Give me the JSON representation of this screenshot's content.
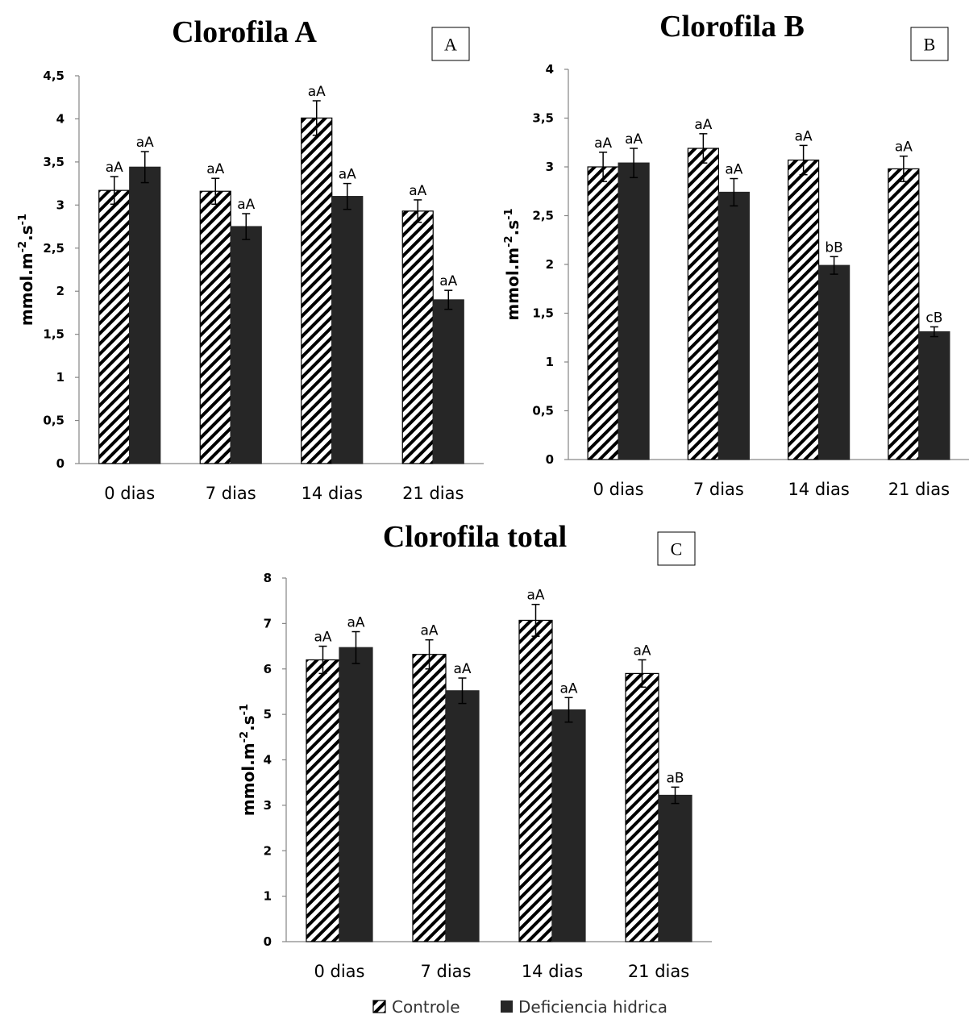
{
  "legend": {
    "controle": "Controle",
    "deficiencia": "Deficiencia hidrica"
  },
  "colors": {
    "controle_fill": "#ffffff",
    "controle_hatch": "#000000",
    "deficiencia_fill": "#262626",
    "axis": "#868686"
  },
  "chart_data": [
    {
      "type": "bar",
      "title": "Clorofila A",
      "panel_label": "A",
      "ylabel": "mmol.m-2.s-1",
      "ylabel_parts": [
        "mmol.m",
        "-2",
        ".s",
        "-1"
      ],
      "ylim": [
        0,
        4.5
      ],
      "yticks": [
        "0",
        "0,5",
        "1",
        "1,5",
        "2",
        "2,5",
        "3",
        "3,5",
        "4",
        "4,5"
      ],
      "categories": [
        "0 dias",
        "7 dias",
        "14 dias",
        "21 dias"
      ],
      "series": [
        {
          "name": "Controle",
          "values": [
            3.17,
            3.16,
            4.01,
            2.93
          ],
          "errors": [
            0.16,
            0.15,
            0.2,
            0.13
          ],
          "labels": [
            "aA",
            "aA",
            "aA",
            "aA"
          ]
        },
        {
          "name": "Deficiencia hidrica",
          "values": [
            3.44,
            2.75,
            3.1,
            1.9
          ],
          "errors": [
            0.18,
            0.15,
            0.15,
            0.11
          ],
          "labels": [
            "aA",
            "aA",
            "aA",
            "aA"
          ]
        }
      ]
    },
    {
      "type": "bar",
      "title": "Clorofila B",
      "panel_label": "B",
      "ylabel": "mmol.m-2.s-1",
      "ylabel_parts": [
        "mmol.m",
        "-2",
        ".s",
        "-1"
      ],
      "ylim": [
        0,
        4
      ],
      "yticks": [
        "0",
        "0,5",
        "1",
        "1,5",
        "2",
        "2,5",
        "3",
        "3,5",
        "4"
      ],
      "categories": [
        "0 dias",
        "7 dias",
        "14 dias",
        "21 dias"
      ],
      "series": [
        {
          "name": "Controle",
          "values": [
            3.0,
            3.19,
            3.07,
            2.98
          ],
          "errors": [
            0.15,
            0.15,
            0.15,
            0.13
          ],
          "labels": [
            "aA",
            "aA",
            "aA",
            "aA"
          ]
        },
        {
          "name": "Deficiencia hidrica",
          "values": [
            3.04,
            2.74,
            1.99,
            1.31
          ],
          "errors": [
            0.15,
            0.14,
            0.09,
            0.05
          ],
          "labels": [
            "aA",
            "aA",
            "bB",
            "cB"
          ]
        }
      ]
    },
    {
      "type": "bar",
      "title": "Clorofila total",
      "panel_label": "C",
      "ylabel": "mmol.m-2.s-1",
      "ylabel_parts": [
        "mmol.m",
        "-2",
        ".s",
        "-1"
      ],
      "ylim": [
        0,
        8
      ],
      "yticks": [
        "0",
        "1",
        "2",
        "3",
        "4",
        "5",
        "6",
        "7",
        "8"
      ],
      "categories": [
        "0 dias",
        "7 dias",
        "14 dias",
        "21 dias"
      ],
      "series": [
        {
          "name": "Controle",
          "values": [
            6.2,
            6.32,
            7.07,
            5.9
          ],
          "errors": [
            0.3,
            0.32,
            0.35,
            0.3
          ],
          "labels": [
            "aA",
            "aA",
            "aA",
            "aA"
          ]
        },
        {
          "name": "Deficiencia hidrica",
          "values": [
            6.47,
            5.52,
            5.1,
            3.22
          ],
          "errors": [
            0.35,
            0.28,
            0.27,
            0.18
          ],
          "labels": [
            "aA",
            "aA",
            "aA",
            "aB"
          ]
        }
      ]
    }
  ]
}
